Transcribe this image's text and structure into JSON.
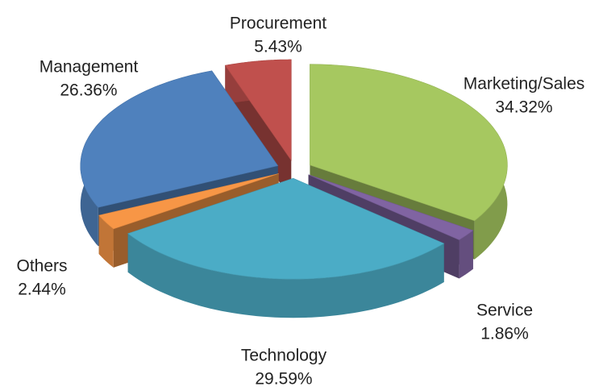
{
  "chart_data": {
    "type": "pie3d",
    "categories": [
      "Marketing/Sales",
      "Service",
      "Technology",
      "Others",
      "Management",
      "Procurement"
    ],
    "values": [
      34.32,
      1.86,
      29.59,
      2.44,
      26.36,
      5.43
    ],
    "value_labels": [
      "34.32%",
      "1.86%",
      "29.59%",
      "2.44%",
      "26.36%",
      "5.43%"
    ],
    "colors": [
      "#a6c860",
      "#8064a2",
      "#4bacc6",
      "#f79646",
      "#4f81bd",
      "#c0504d"
    ]
  }
}
